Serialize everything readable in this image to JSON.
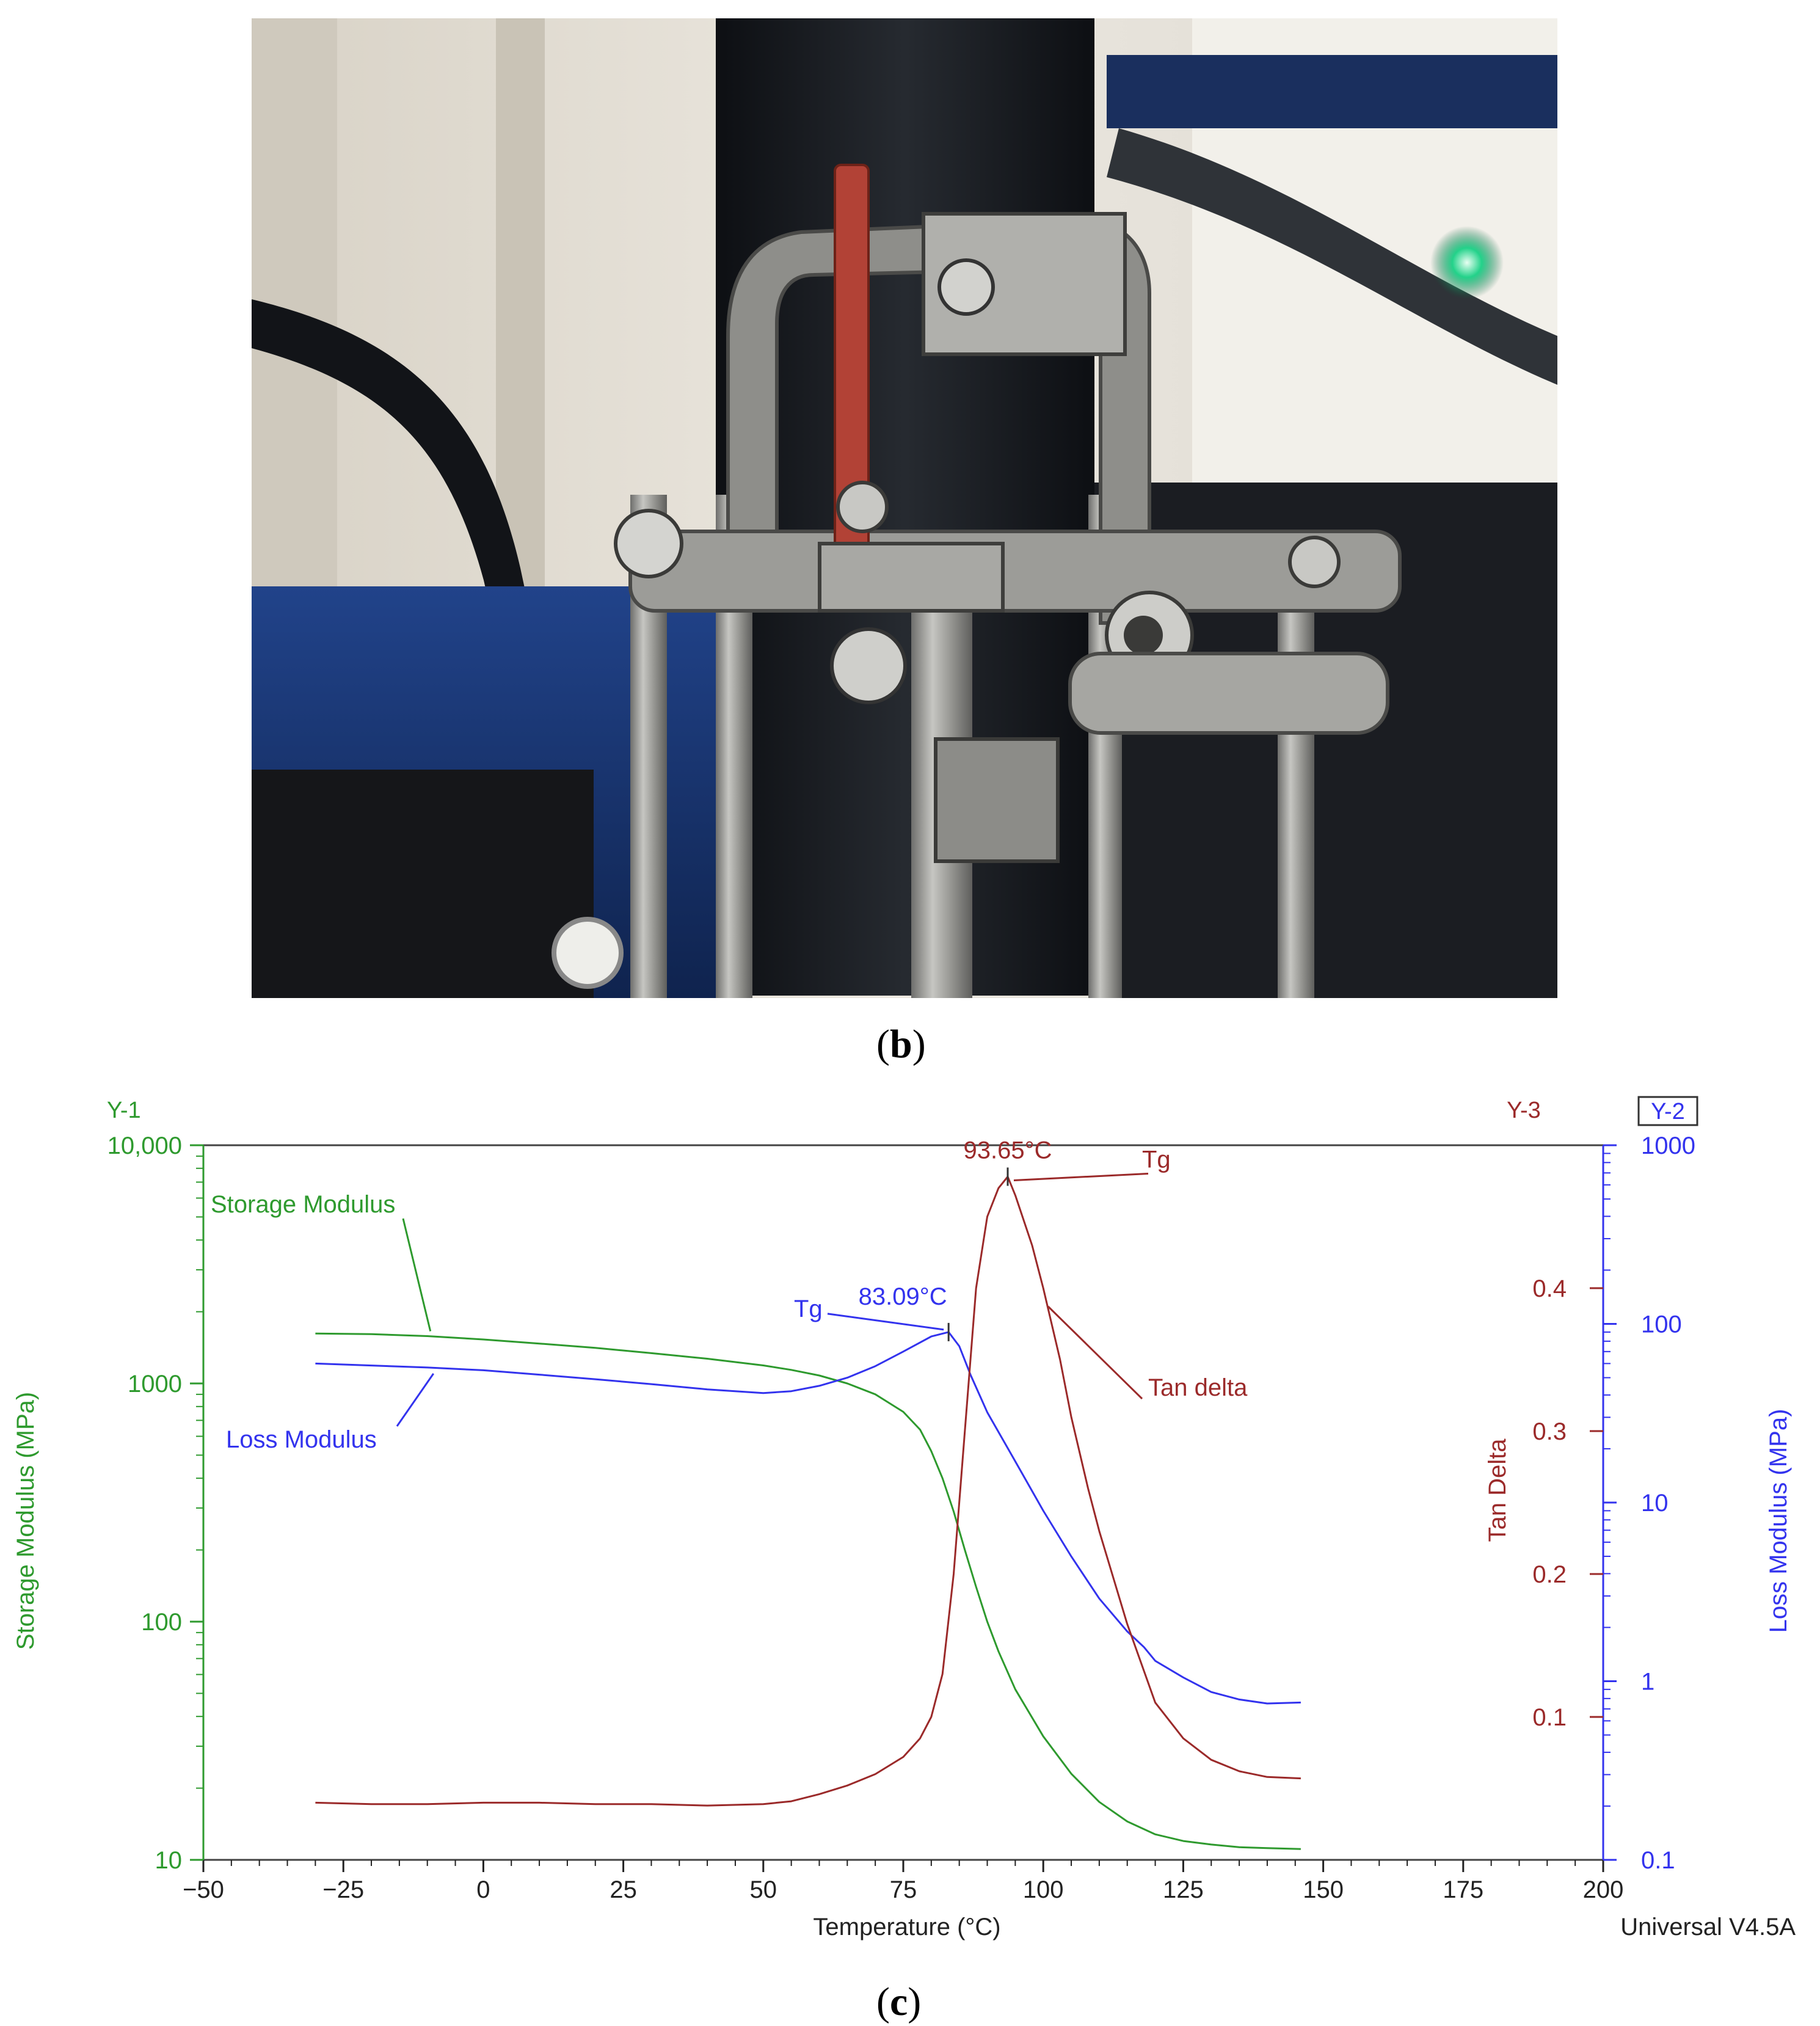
{
  "panels": {
    "b_label": "b",
    "c_label": "c"
  },
  "photo": {
    "subject": "DMA single cantilever clamp holding red specimen",
    "colors": {
      "background_wall": "#e4e0d8",
      "dark_column": "#1b1d22",
      "steel": "#9a9a98",
      "specimen": "#b24236",
      "base_blue": "#1d3a78",
      "led": "#23d28a"
    }
  },
  "chart_data": {
    "type": "line",
    "xlabel": "Temperature (°C)",
    "xlim": [
      -50,
      200
    ],
    "xticks": [
      -50,
      -25,
      0,
      25,
      50,
      75,
      100,
      125,
      150,
      175,
      200
    ],
    "y1": {
      "tag": "Y-1",
      "label": "Storage Modulus (MPa)",
      "scale": "log",
      "lim": [
        10,
        10000
      ],
      "ticks": [
        "10",
        "100",
        "1000",
        "10,000"
      ],
      "tick_values": [
        10,
        100,
        1000,
        10000
      ],
      "color": "#2e9a2e"
    },
    "y2": {
      "tag": "Y-2",
      "label": "Loss Modulus (MPa)",
      "scale": "log",
      "lim": [
        0.1,
        1000
      ],
      "ticks": [
        "0.1",
        "1",
        "10",
        "100",
        "1000"
      ],
      "tick_values": [
        0.1,
        1,
        10,
        100,
        1000
      ],
      "color": "#3333ee"
    },
    "y3": {
      "tag": "Y-3",
      "label": "Tan Delta",
      "scale": "linear",
      "lim": [
        0.0,
        0.5
      ],
      "ticks": [
        "0.1",
        "0.2",
        "0.3",
        "0.4"
      ],
      "tick_values": [
        0.1,
        0.2,
        0.3,
        0.4
      ],
      "color": "#9b2a2a"
    },
    "software": "Universal V4.5A",
    "series": [
      {
        "name": "Storage Modulus",
        "axis": "y1",
        "color": "#2e9a2e",
        "x": [
          -30,
          -20,
          -10,
          0,
          10,
          20,
          30,
          40,
          50,
          55,
          60,
          65,
          70,
          75,
          78,
          80,
          82,
          84,
          86,
          88,
          90,
          92,
          95,
          100,
          105,
          110,
          115,
          120,
          125,
          130,
          135,
          140,
          146
        ],
        "y": [
          1620,
          1610,
          1580,
          1530,
          1470,
          1410,
          1340,
          1270,
          1190,
          1140,
          1080,
          1000,
          900,
          760,
          640,
          520,
          400,
          290,
          200,
          140,
          100,
          75,
          52,
          33,
          23,
          17.5,
          14.5,
          12.8,
          12.0,
          11.6,
          11.3,
          11.2,
          11.1
        ]
      },
      {
        "name": "Loss Modulus",
        "axis": "y2",
        "color": "#3333ee",
        "x": [
          -30,
          -20,
          -10,
          0,
          10,
          20,
          30,
          40,
          50,
          55,
          60,
          65,
          70,
          75,
          80,
          83.09,
          85,
          87,
          90,
          95,
          100,
          105,
          110,
          115,
          118,
          120,
          125,
          130,
          135,
          140,
          146
        ],
        "y": [
          60,
          58.5,
          57,
          55,
          52,
          49,
          46,
          43,
          41,
          42,
          45,
          50,
          58,
          70,
          85,
          90,
          75,
          52,
          32,
          17,
          9,
          5,
          2.9,
          1.9,
          1.55,
          1.3,
          1.05,
          0.87,
          0.79,
          0.75,
          0.76
        ]
      },
      {
        "name": "Tan delta",
        "axis": "y3",
        "color": "#9b2a2a",
        "x": [
          -30,
          -20,
          -10,
          0,
          10,
          20,
          30,
          40,
          50,
          55,
          60,
          65,
          70,
          75,
          78,
          80,
          82,
          84,
          86,
          88,
          90,
          92,
          93.65,
          95,
          98,
          100,
          103,
          105,
          108,
          110,
          115,
          120,
          125,
          130,
          135,
          140,
          146
        ],
        "y": [
          0.04,
          0.039,
          0.039,
          0.04,
          0.04,
          0.039,
          0.039,
          0.038,
          0.039,
          0.041,
          0.046,
          0.052,
          0.06,
          0.072,
          0.085,
          0.1,
          0.13,
          0.2,
          0.3,
          0.4,
          0.45,
          0.47,
          0.478,
          0.465,
          0.43,
          0.4,
          0.35,
          0.31,
          0.26,
          0.23,
          0.165,
          0.11,
          0.085,
          0.07,
          0.062,
          0.058,
          0.057
        ]
      }
    ],
    "annotations": [
      {
        "series": "Tan delta",
        "peak_label": "93.65°C",
        "tag": "Tg",
        "x": 93.65
      },
      {
        "series": "Loss Modulus",
        "peak_label": "83.09°C",
        "tag": "Tg",
        "x": 83.09
      }
    ]
  }
}
